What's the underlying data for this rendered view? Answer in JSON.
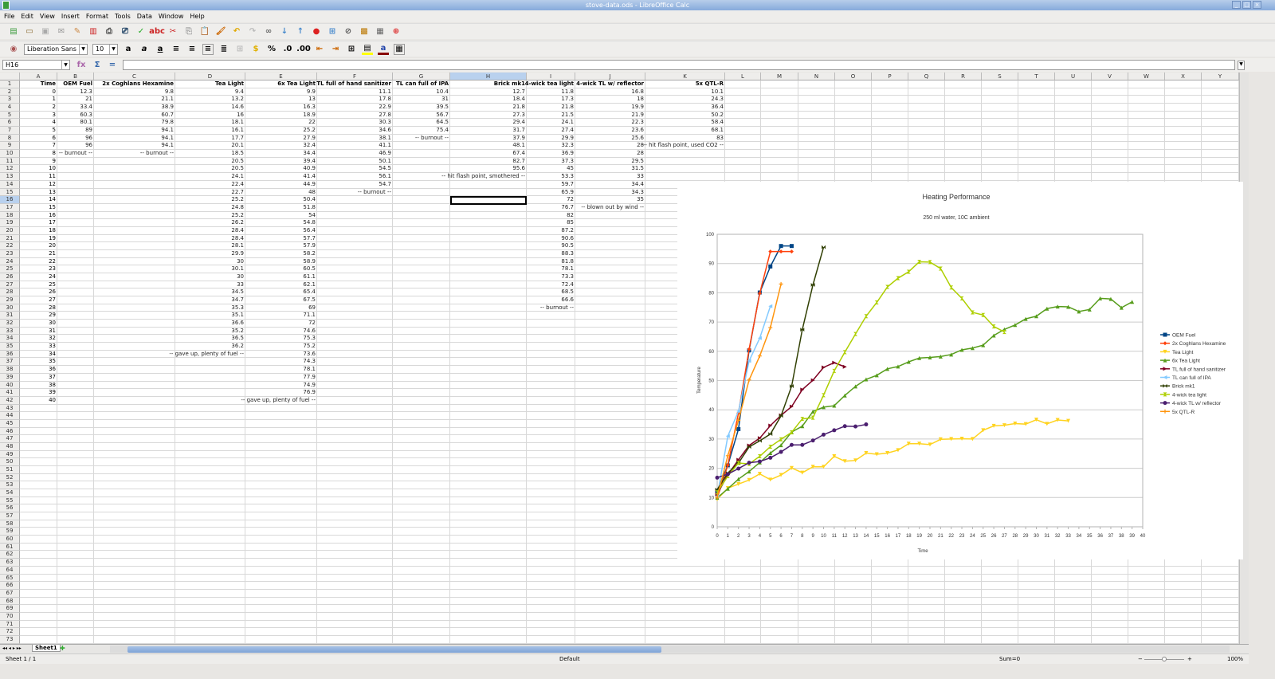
{
  "window": {
    "title": "stove-data.ods - LibreOffice Calc"
  },
  "menu": [
    "File",
    "Edit",
    "View",
    "Insert",
    "Format",
    "Tools",
    "Data",
    "Window",
    "Help"
  ],
  "toolbar2": {
    "font_name": "Liberation Sans",
    "font_size": "10"
  },
  "formula_bar": {
    "cell_ref": "H16",
    "value": ""
  },
  "columns": [
    "A",
    "B",
    "C",
    "D",
    "E",
    "F",
    "G",
    "H",
    "I",
    "J",
    "K",
    "L",
    "M",
    "N",
    "O",
    "P",
    "Q",
    "R",
    "S",
    "T",
    "U",
    "V",
    "W",
    "X",
    "Y"
  ],
  "selected_cell": {
    "col": "H",
    "row": 16
  },
  "sheet": {
    "headers": [
      "Time",
      "OEM Fuel",
      "2x Coghlans Hexamine",
      "Tea Light",
      "6x Tea Light",
      "TL full of hand sanitizer",
      "TL can full of IPA",
      "Brick mk1",
      "4-wick tea light",
      "4-wick TL w/ reflector",
      "5x QTL-R"
    ],
    "columns_data": [
      [
        "0",
        "1",
        "2",
        "3",
        "4",
        "5",
        "6",
        "7",
        "8",
        "9",
        "10",
        "11",
        "12",
        "13",
        "14",
        "15",
        "16",
        "17",
        "18",
        "19",
        "20",
        "21",
        "22",
        "23",
        "24",
        "25",
        "26",
        "27",
        "28",
        "29",
        "30",
        "31",
        "32",
        "33",
        "34",
        "35",
        "36",
        "37",
        "38",
        "39",
        "40"
      ],
      [
        "12.3",
        "21",
        "33.4",
        "60.3",
        "80.1",
        "89",
        "96",
        "96",
        "-- burnout --"
      ],
      [
        "9.8",
        "21.1",
        "38.9",
        "60.7",
        "79.8",
        "94.1",
        "94.1",
        "94.1",
        "-- burnout --"
      ],
      [
        "9.4",
        "13.2",
        "14.6",
        "16",
        "18.1",
        "16.1",
        "17.7",
        "20.1",
        "18.5",
        "20.5",
        "20.5",
        "24.1",
        "22.4",
        "22.7",
        "25.2",
        "24.8",
        "25.2",
        "26.2",
        "28.4",
        "28.4",
        "28.1",
        "29.9",
        "30",
        "30.1",
        "30",
        "33",
        "34.5",
        "34.7",
        "35.3",
        "35.1",
        "36.6",
        "35.2",
        "36.5",
        "36.2",
        "-- gave up, plenty of fuel --"
      ],
      [
        "9.9",
        "13",
        "16.3",
        "18.9",
        "22",
        "25.2",
        "27.9",
        "32.4",
        "34.4",
        "39.4",
        "40.9",
        "41.4",
        "44.9",
        "48",
        "50.4",
        "51.8",
        "54",
        "54.8",
        "56.4",
        "57.7",
        "57.9",
        "58.2",
        "58.9",
        "60.5",
        "61.1",
        "62.1",
        "65.4",
        "67.5",
        "69",
        "71.1",
        "72",
        "74.6",
        "75.3",
        "75.2",
        "73.6",
        "74.3",
        "78.1",
        "77.9",
        "74.9",
        "76.9",
        "-- gave up, plenty of fuel --"
      ],
      [
        "11.1",
        "17.8",
        "22.9",
        "27.8",
        "30.3",
        "34.6",
        "38.1",
        "41.1",
        "46.9",
        "50.1",
        "54.5",
        "56.1",
        "54.7",
        "-- burnout --"
      ],
      [
        "10.4",
        "31",
        "39.5",
        "56.7",
        "64.5",
        "75.4",
        "-- burnout --"
      ],
      [
        "12.7",
        "18.4",
        "21.8",
        "27.3",
        "29.4",
        "31.7",
        "37.9",
        "48.1",
        "67.4",
        "82.7",
        "95.6",
        "-- hit flash point, smothered --"
      ],
      [
        "11.8",
        "17.3",
        "21.8",
        "21.5",
        "24.1",
        "27.4",
        "29.9",
        "32.3",
        "36.9",
        "37.3",
        "45",
        "53.3",
        "59.7",
        "65.9",
        "72",
        "76.7",
        "82",
        "85",
        "87.2",
        "90.6",
        "90.5",
        "88.3",
        "81.8",
        "78.1",
        "73.3",
        "72.4",
        "68.5",
        "66.6",
        "-- burnout --"
      ],
      [
        "16.8",
        "18",
        "19.9",
        "21.9",
        "22.3",
        "23.6",
        "25.6",
        "28",
        "28",
        "29.5",
        "31.5",
        "33",
        "34.4",
        "34.3",
        "35",
        "-- blown out by wind --"
      ],
      [
        "10.1",
        "24.3",
        "36.4",
        "50.2",
        "58.4",
        "68.1",
        "83",
        "-- hit flash point, used CO2 --"
      ]
    ]
  },
  "chart_data": {
    "type": "line",
    "title": "Heating Performance",
    "subtitle": "250 ml water, 10C ambient",
    "xlabel": "Time",
    "ylabel": "Temperature",
    "xlim": [
      0,
      40
    ],
    "ylim": [
      0,
      100
    ],
    "yticks": [
      0,
      10,
      20,
      30,
      40,
      50,
      60,
      70,
      80,
      90,
      100
    ],
    "grid": true,
    "legend": "right",
    "series": [
      {
        "name": "OEM Fuel",
        "color": "#004586",
        "marker": "square",
        "values": [
          12.3,
          21,
          33.4,
          60.3,
          80.1,
          89,
          96,
          96
        ]
      },
      {
        "name": "2x Coghlans Hexamine",
        "color": "#ff420e",
        "marker": "diamond",
        "values": [
          9.8,
          21.1,
          38.9,
          60.7,
          79.8,
          94.1,
          94.1,
          94.1
        ]
      },
      {
        "name": "Tea Light",
        "color": "#ffd320",
        "marker": "triangle-down",
        "values": [
          9.4,
          13.2,
          14.6,
          16,
          18.1,
          16.1,
          17.7,
          20.1,
          18.5,
          20.5,
          20.5,
          24.1,
          22.4,
          22.7,
          25.2,
          24.8,
          25.2,
          26.2,
          28.4,
          28.4,
          28.1,
          29.9,
          30,
          30.1,
          30,
          33,
          34.5,
          34.7,
          35.3,
          35.1,
          36.6,
          35.2,
          36.5,
          36.2
        ]
      },
      {
        "name": "6x Tea Light",
        "color": "#579d1c",
        "marker": "triangle-up",
        "values": [
          9.9,
          13,
          16.3,
          18.9,
          22,
          25.2,
          27.9,
          32.4,
          34.4,
          39.4,
          40.9,
          41.4,
          44.9,
          48,
          50.4,
          51.8,
          54,
          54.8,
          56.4,
          57.7,
          57.9,
          58.2,
          58.9,
          60.5,
          61.1,
          62.1,
          65.4,
          67.5,
          69,
          71.1,
          72,
          74.6,
          75.3,
          75.2,
          73.6,
          74.3,
          78.1,
          77.9,
          74.9,
          76.9
        ]
      },
      {
        "name": "TL full of hand sanitizer",
        "color": "#7e0021",
        "marker": "triangle-right",
        "values": [
          11.1,
          17.8,
          22.9,
          27.8,
          30.3,
          34.6,
          38.1,
          41.1,
          46.9,
          50.1,
          54.5,
          56.1,
          54.7
        ]
      },
      {
        "name": "TL can full of IPA",
        "color": "#83caff",
        "marker": "triangle-left",
        "values": [
          10.4,
          31,
          39.5,
          56.7,
          64.5,
          75.4
        ]
      },
      {
        "name": "Brick mk1",
        "color": "#314004",
        "marker": "bowtie",
        "values": [
          12.7,
          18.4,
          21.8,
          27.3,
          29.4,
          31.7,
          37.9,
          48.1,
          67.4,
          82.7,
          95.6
        ]
      },
      {
        "name": "4-wick tea light",
        "color": "#aecf00",
        "marker": "hourglass",
        "values": [
          11.8,
          17.3,
          21.8,
          21.5,
          24.1,
          27.4,
          29.9,
          32.3,
          36.9,
          37.3,
          45,
          53.3,
          59.7,
          65.9,
          72,
          76.7,
          82,
          85,
          87.2,
          90.6,
          90.5,
          88.3,
          81.8,
          78.1,
          73.3,
          72.4,
          68.5,
          66.6
        ]
      },
      {
        "name": "4-wick TL w/ reflector",
        "color": "#4b1f6f",
        "marker": "circle",
        "values": [
          16.8,
          18,
          19.9,
          21.9,
          22.3,
          23.6,
          25.6,
          28,
          28,
          29.5,
          31.5,
          33,
          34.4,
          34.3,
          35
        ]
      },
      {
        "name": "5x QTL-R",
        "color": "#ff950e",
        "marker": "plus",
        "values": [
          10.1,
          24.3,
          36.4,
          50.2,
          58.4,
          68.1,
          83
        ]
      }
    ]
  },
  "sheet_tabs": [
    "Sheet1"
  ],
  "status": {
    "sheet": "Sheet 1 / 1",
    "style": "Default",
    "sum": "Sum=0",
    "zoom": "100%"
  }
}
